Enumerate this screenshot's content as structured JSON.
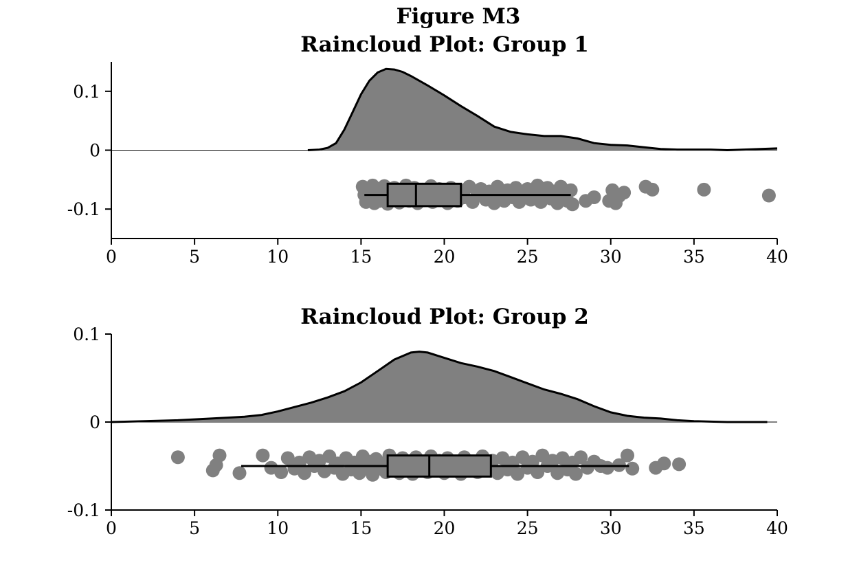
{
  "figure_title": "Figure M3",
  "colors": {
    "fill": "#808080",
    "outline": "#000000",
    "dots": "#808080"
  },
  "chart_data": [
    {
      "type": "raincloud",
      "title": "Raincloud Plot: Group 1",
      "xlabel": "",
      "ylabel": "",
      "xlim": [
        0,
        40
      ],
      "ylim": [
        -0.15,
        0.15
      ],
      "xticks": [
        "0",
        "5",
        "10",
        "15",
        "20",
        "25",
        "30",
        "35",
        "40"
      ],
      "yticks": [
        "0.1",
        "0",
        "-0.1"
      ],
      "density": {
        "x": [
          11.8,
          12.5,
          13.0,
          13.5,
          14.0,
          14.5,
          15.0,
          15.5,
          16.0,
          16.5,
          17.0,
          17.5,
          18.0,
          19.0,
          20.0,
          21.0,
          22.0,
          23.0,
          24.0,
          25.0,
          26.0,
          27.0,
          28.0,
          29.0,
          30.0,
          31.0,
          32.0,
          33.0,
          34.0,
          35.0,
          36.0,
          37.0,
          38.0,
          39.0,
          40.0
        ],
        "y": [
          0.0,
          0.001,
          0.004,
          0.012,
          0.035,
          0.065,
          0.095,
          0.118,
          0.132,
          0.138,
          0.137,
          0.133,
          0.126,
          0.11,
          0.093,
          0.075,
          0.058,
          0.04,
          0.031,
          0.027,
          0.024,
          0.024,
          0.02,
          0.012,
          0.009,
          0.008,
          0.005,
          0.002,
          0.001,
          0.001,
          0.001,
          0.0,
          0.001,
          0.002,
          0.003
        ]
      },
      "box": {
        "whisker_low": 15.2,
        "q1": 16.6,
        "median": 18.3,
        "q3": 21.0,
        "whisker_high": 27.6,
        "y": -0.076,
        "half_height": 0.019
      },
      "points": [
        [
          15.1,
          -0.062
        ],
        [
          15.2,
          -0.076
        ],
        [
          15.3,
          -0.088
        ],
        [
          15.4,
          -0.07
        ],
        [
          15.6,
          -0.082
        ],
        [
          15.7,
          -0.06
        ],
        [
          15.8,
          -0.09
        ],
        [
          15.9,
          -0.074
        ],
        [
          16.0,
          -0.066
        ],
        [
          16.1,
          -0.086
        ],
        [
          16.3,
          -0.078
        ],
        [
          16.4,
          -0.061
        ],
        [
          16.6,
          -0.091
        ],
        [
          16.7,
          -0.07
        ],
        [
          16.9,
          -0.084
        ],
        [
          17.0,
          -0.064
        ],
        [
          17.1,
          -0.076
        ],
        [
          17.3,
          -0.089
        ],
        [
          17.4,
          -0.068
        ],
        [
          17.6,
          -0.08
        ],
        [
          17.7,
          -0.06
        ],
        [
          17.9,
          -0.086
        ],
        [
          18.0,
          -0.073
        ],
        [
          18.2,
          -0.064
        ],
        [
          18.4,
          -0.09
        ],
        [
          18.5,
          -0.078
        ],
        [
          18.7,
          -0.067
        ],
        [
          18.8,
          -0.085
        ],
        [
          19.0,
          -0.072
        ],
        [
          19.2,
          -0.061
        ],
        [
          19.3,
          -0.088
        ],
        [
          19.5,
          -0.076
        ],
        [
          19.7,
          -0.066
        ],
        [
          19.9,
          -0.083
        ],
        [
          20.0,
          -0.07
        ],
        [
          20.2,
          -0.09
        ],
        [
          20.4,
          -0.064
        ],
        [
          20.6,
          -0.078
        ],
        [
          20.8,
          -0.086
        ],
        [
          21.0,
          -0.068
        ],
        [
          21.2,
          -0.08
        ],
        [
          21.5,
          -0.062
        ],
        [
          21.7,
          -0.088
        ],
        [
          22.0,
          -0.074
        ],
        [
          22.2,
          -0.066
        ],
        [
          22.5,
          -0.084
        ],
        [
          22.7,
          -0.07
        ],
        [
          23.0,
          -0.09
        ],
        [
          23.2,
          -0.062
        ],
        [
          23.4,
          -0.078
        ],
        [
          23.6,
          -0.086
        ],
        [
          23.8,
          -0.068
        ],
        [
          24.1,
          -0.08
        ],
        [
          24.3,
          -0.064
        ],
        [
          24.5,
          -0.088
        ],
        [
          24.8,
          -0.074
        ],
        [
          25.0,
          -0.066
        ],
        [
          25.2,
          -0.084
        ],
        [
          25.4,
          -0.07
        ],
        [
          25.6,
          -0.06
        ],
        [
          25.8,
          -0.088
        ],
        [
          26.0,
          -0.076
        ],
        [
          26.2,
          -0.064
        ],
        [
          26.4,
          -0.082
        ],
        [
          26.6,
          -0.07
        ],
        [
          26.8,
          -0.09
        ],
        [
          27.0,
          -0.062
        ],
        [
          27.2,
          -0.078
        ],
        [
          27.4,
          -0.086
        ],
        [
          27.6,
          -0.068
        ],
        [
          27.7,
          -0.092
        ],
        [
          28.5,
          -0.086
        ],
        [
          29.0,
          -0.08
        ],
        [
          29.9,
          -0.086
        ],
        [
          30.1,
          -0.068
        ],
        [
          30.3,
          -0.09
        ],
        [
          30.5,
          -0.078
        ],
        [
          30.8,
          -0.072
        ],
        [
          32.1,
          -0.062
        ],
        [
          32.5,
          -0.067
        ],
        [
          35.6,
          -0.067
        ],
        [
          39.5,
          -0.077
        ]
      ]
    },
    {
      "type": "raincloud",
      "title": "Raincloud Plot: Group 2",
      "xlabel": "",
      "ylabel": "",
      "xlim": [
        0,
        40
      ],
      "ylim": [
        -0.1,
        0.1
      ],
      "xticks": [
        "0",
        "5",
        "10",
        "15",
        "20",
        "25",
        "30",
        "35",
        "40"
      ],
      "yticks": [
        "0.1",
        "0",
        "-0.1"
      ],
      "density": {
        "x": [
          0,
          2,
          4,
          6,
          7,
          8,
          9,
          10,
          11,
          12,
          13,
          14,
          15,
          16,
          17,
          18,
          18.5,
          19,
          20,
          21,
          22,
          23,
          24,
          25,
          26,
          27,
          28,
          29,
          30,
          31,
          32,
          33,
          34,
          35,
          36,
          37,
          38,
          39.4
        ],
        "y": [
          0.0,
          0.001,
          0.002,
          0.004,
          0.005,
          0.006,
          0.008,
          0.012,
          0.017,
          0.022,
          0.028,
          0.035,
          0.045,
          0.058,
          0.071,
          0.079,
          0.08,
          0.079,
          0.073,
          0.067,
          0.063,
          0.058,
          0.051,
          0.044,
          0.037,
          0.032,
          0.026,
          0.018,
          0.011,
          0.007,
          0.005,
          0.004,
          0.002,
          0.001,
          0.0005,
          0.0,
          0.0,
          0.0
        ]
      },
      "box": {
        "whisker_low": 7.8,
        "q1": 16.6,
        "median": 19.1,
        "q3": 22.8,
        "whisker_high": 31.1,
        "y": -0.05,
        "half_height": 0.012
      },
      "points": [
        [
          4.0,
          -0.04
        ],
        [
          6.1,
          -0.055
        ],
        [
          6.3,
          -0.049
        ],
        [
          6.5,
          -0.038
        ],
        [
          7.7,
          -0.058
        ],
        [
          9.1,
          -0.038
        ],
        [
          9.6,
          -0.052
        ],
        [
          10.2,
          -0.057
        ],
        [
          10.6,
          -0.041
        ],
        [
          11.0,
          -0.053
        ],
        [
          11.3,
          -0.046
        ],
        [
          11.6,
          -0.058
        ],
        [
          11.9,
          -0.04
        ],
        [
          12.2,
          -0.05
        ],
        [
          12.5,
          -0.044
        ],
        [
          12.8,
          -0.056
        ],
        [
          13.1,
          -0.039
        ],
        [
          13.4,
          -0.052
        ],
        [
          13.6,
          -0.047
        ],
        [
          13.9,
          -0.059
        ],
        [
          14.1,
          -0.041
        ],
        [
          14.4,
          -0.054
        ],
        [
          14.6,
          -0.046
        ],
        [
          14.9,
          -0.058
        ],
        [
          15.1,
          -0.039
        ],
        [
          15.3,
          -0.051
        ],
        [
          15.5,
          -0.045
        ],
        [
          15.7,
          -0.06
        ],
        [
          15.9,
          -0.042
        ],
        [
          16.1,
          -0.053
        ],
        [
          16.3,
          -0.047
        ],
        [
          16.5,
          -0.057
        ],
        [
          16.7,
          -0.038
        ],
        [
          16.9,
          -0.05
        ],
        [
          17.1,
          -0.044
        ],
        [
          17.3,
          -0.058
        ],
        [
          17.5,
          -0.041
        ],
        [
          17.7,
          -0.055
        ],
        [
          17.9,
          -0.046
        ],
        [
          18.1,
          -0.059
        ],
        [
          18.3,
          -0.04
        ],
        [
          18.5,
          -0.052
        ],
        [
          18.8,
          -0.045
        ],
        [
          19.0,
          -0.057
        ],
        [
          19.2,
          -0.039
        ],
        [
          19.5,
          -0.05
        ],
        [
          19.7,
          -0.044
        ],
        [
          20.0,
          -0.058
        ],
        [
          20.2,
          -0.041
        ],
        [
          20.5,
          -0.054
        ],
        [
          20.7,
          -0.046
        ],
        [
          21.0,
          -0.059
        ],
        [
          21.2,
          -0.04
        ],
        [
          21.5,
          -0.052
        ],
        [
          21.7,
          -0.045
        ],
        [
          22.0,
          -0.057
        ],
        [
          22.3,
          -0.039
        ],
        [
          22.6,
          -0.05
        ],
        [
          22.9,
          -0.044
        ],
        [
          23.2,
          -0.058
        ],
        [
          23.5,
          -0.041
        ],
        [
          23.8,
          -0.054
        ],
        [
          24.1,
          -0.046
        ],
        [
          24.4,
          -0.059
        ],
        [
          24.7,
          -0.04
        ],
        [
          25.0,
          -0.052
        ],
        [
          25.3,
          -0.045
        ],
        [
          25.6,
          -0.057
        ],
        [
          25.9,
          -0.038
        ],
        [
          26.2,
          -0.05
        ],
        [
          26.5,
          -0.044
        ],
        [
          26.8,
          -0.058
        ],
        [
          27.1,
          -0.041
        ],
        [
          27.4,
          -0.054
        ],
        [
          27.7,
          -0.046
        ],
        [
          27.9,
          -0.059
        ],
        [
          28.2,
          -0.04
        ],
        [
          28.6,
          -0.052
        ],
        [
          29.0,
          -0.045
        ],
        [
          29.4,
          -0.05
        ],
        [
          29.8,
          -0.052
        ],
        [
          30.5,
          -0.049
        ],
        [
          31.0,
          -0.038
        ],
        [
          31.3,
          -0.053
        ],
        [
          32.7,
          -0.052
        ],
        [
          33.2,
          -0.047
        ],
        [
          34.1,
          -0.048
        ]
      ]
    }
  ]
}
